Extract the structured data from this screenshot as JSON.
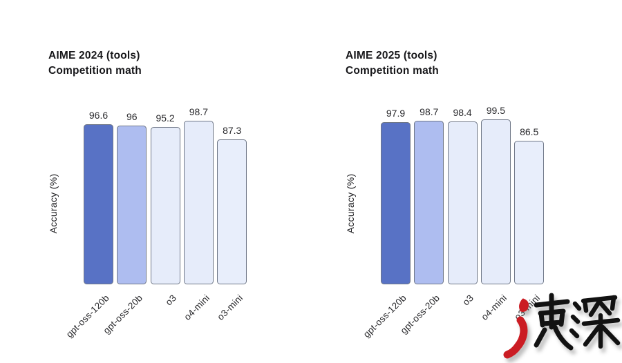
{
  "chart_data": [
    {
      "type": "bar",
      "title": "AIME 2024 (tools)",
      "subtitle": "Competition math",
      "ylabel": "Accuracy (%)",
      "categories": [
        "gpt-oss-120b",
        "gpt-oss-20b",
        "o3",
        "o4-mini",
        "o3-mini"
      ],
      "values": [
        96.6,
        96,
        95.2,
        98.7,
        87.3
      ],
      "value_labels": [
        "96.6",
        "96",
        "95.2",
        "98.7",
        "87.3"
      ],
      "ylim": [
        0,
        100
      ],
      "grid": "off",
      "legend": "none"
    },
    {
      "type": "bar",
      "title": "AIME 2025 (tools)",
      "subtitle": "Competition math",
      "ylabel": "Accuracy (%)",
      "categories": [
        "gpt-oss-120b",
        "gpt-oss-20b",
        "o3",
        "o4-mini",
        "o3-mini"
      ],
      "values": [
        97.9,
        98.7,
        98.4,
        99.5,
        86.5
      ],
      "value_labels": [
        "97.9",
        "98.7",
        "98.4",
        "99.5",
        "86.5"
      ],
      "ylim": [
        0,
        100
      ],
      "grid": "off",
      "legend": "none"
    }
  ],
  "palette": {
    "bars": [
      "#5872c5",
      "#aebdf0",
      "#e6ecfa",
      "#e6ecfa",
      "#e8eefb"
    ],
    "bar_border": "#6f7787",
    "title_text": "#17171a",
    "label_text": "#29292c",
    "background": "#ffffff",
    "watermark_ink": "#121212",
    "watermark_accent": "#cb1c23"
  },
  "watermark": {
    "text": "速深",
    "style": "calligraphy"
  }
}
